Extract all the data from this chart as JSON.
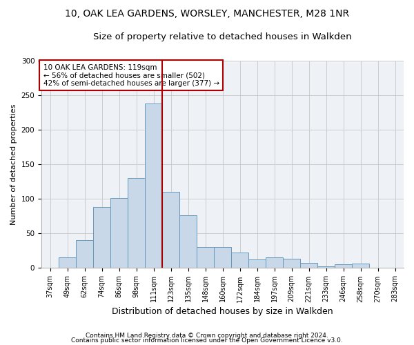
{
  "title1": "10, OAK LEA GARDENS, WORSLEY, MANCHESTER, M28 1NR",
  "title2": "Size of property relative to detached houses in Walkden",
  "xlabel": "Distribution of detached houses by size in Walkden",
  "ylabel": "Number of detached properties",
  "categories": [
    "37sqm",
    "49sqm",
    "62sqm",
    "74sqm",
    "86sqm",
    "98sqm",
    "111sqm",
    "123sqm",
    "135sqm",
    "148sqm",
    "160sqm",
    "172sqm",
    "184sqm",
    "197sqm",
    "209sqm",
    "221sqm",
    "233sqm",
    "246sqm",
    "258sqm",
    "270sqm",
    "283sqm"
  ],
  "values": [
    0,
    15,
    40,
    88,
    101,
    130,
    238,
    110,
    76,
    30,
    30,
    22,
    12,
    15,
    13,
    7,
    2,
    5,
    6,
    0,
    0
  ],
  "bar_color": "#c8d8e8",
  "bar_edge_color": "#6699bb",
  "vline_color": "#aa0000",
  "annotation_text": "10 OAK LEA GARDENS: 119sqm\n← 56% of detached houses are smaller (502)\n42% of semi-detached houses are larger (377) →",
  "annotation_box_edge": "#aa0000",
  "ylim": [
    0,
    300
  ],
  "yticks": [
    0,
    50,
    100,
    150,
    200,
    250,
    300
  ],
  "footer1": "Contains HM Land Registry data © Crown copyright and database right 2024.",
  "footer2": "Contains public sector information licensed under the Open Government Licence v3.0.",
  "bg_color": "#eef2f7",
  "grid_color": "#cccccc",
  "title1_fontsize": 10,
  "title2_fontsize": 9.5,
  "xlabel_fontsize": 9,
  "ylabel_fontsize": 8,
  "tick_fontsize": 7,
  "annot_fontsize": 7.5,
  "footer_fontsize": 6.5
}
